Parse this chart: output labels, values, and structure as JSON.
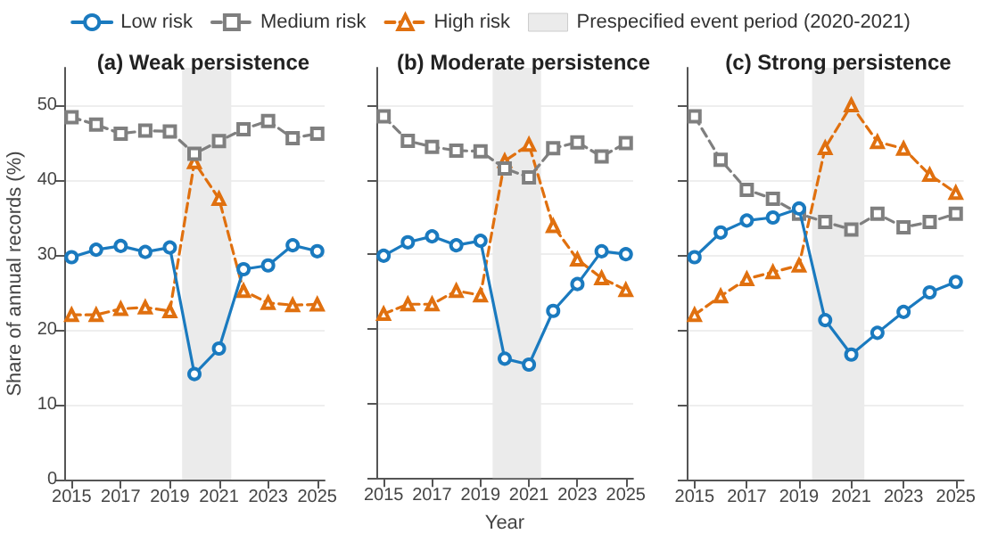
{
  "chart_data": [
    {
      "type": "line",
      "title": "(a) Weak persistence",
      "ylabel": "Share of annual records (%)",
      "x": [
        2015,
        2016,
        2017,
        2018,
        2019,
        2020,
        2021,
        2022,
        2023,
        2024,
        2025
      ],
      "xlim": [
        2014.7,
        2025.3
      ],
      "xticks": [
        2015,
        2017,
        2019,
        2021,
        2023,
        2025
      ],
      "ylim": [
        0,
        55
      ],
      "yticks": [
        0,
        10,
        20,
        30,
        40,
        50
      ],
      "grid": "y",
      "legend": "top",
      "bands": [
        {
          "axis": "x",
          "from": 2019.5,
          "to": 2021.5,
          "label": "Prespecified event period (2020-2021)",
          "color": "#ebebeb"
        }
      ],
      "series": [
        {
          "name": "Low risk",
          "color": "#1a7abf",
          "marker": "circle",
          "line_style": "solid",
          "values": [
            29.7,
            30.7,
            31.2,
            30.4,
            31.0,
            14.1,
            17.5,
            28.1,
            28.6,
            31.3,
            30.5
          ]
        },
        {
          "name": "Medium risk",
          "color": "#7f7f7f",
          "marker": "square",
          "line_style": "dashed",
          "values": [
            48.4,
            47.4,
            46.2,
            46.6,
            46.5,
            43.5,
            45.2,
            46.8,
            47.9,
            45.6,
            46.2
          ]
        },
        {
          "name": "High risk",
          "color": "#e0700f",
          "marker": "triangle",
          "line_style": "dashed",
          "values": [
            22.0,
            22.0,
            22.8,
            23.0,
            22.5,
            42.4,
            37.5,
            25.2,
            23.6,
            23.3,
            23.4
          ]
        }
      ]
    },
    {
      "type": "line",
      "title": "(b) Moderate persistence",
      "xlabel": "Year",
      "x": [
        2015,
        2016,
        2017,
        2018,
        2019,
        2020,
        2021,
        2022,
        2023,
        2024,
        2025
      ],
      "xlim": [
        2014.7,
        2025.3
      ],
      "xticks": [
        2015,
        2017,
        2019,
        2021,
        2023,
        2025
      ],
      "ylim": [
        0,
        55
      ],
      "yticks": [
        0,
        10,
        20,
        30,
        40,
        50
      ],
      "grid": "y",
      "tick_labels": "x",
      "bands": [
        {
          "axis": "x",
          "from": 2019.5,
          "to": 2021.5,
          "color": "#ebebeb"
        }
      ],
      "series": [
        {
          "color": "#1a7abf",
          "marker": "circle",
          "line_style": "solid",
          "values": [
            29.8,
            31.6,
            32.4,
            31.2,
            31.8,
            16.0,
            15.2,
            22.4,
            26.0,
            30.4,
            30.0
          ]
        },
        {
          "color": "#7f7f7f",
          "marker": "square",
          "line_style": "dashed",
          "values": [
            48.5,
            45.2,
            44.4,
            43.9,
            43.8,
            41.5,
            40.3,
            44.2,
            45.0,
            43.1,
            44.9
          ]
        },
        {
          "color": "#e0700f",
          "marker": "triangle",
          "line_style": "dashed",
          "values": [
            22.0,
            23.3,
            23.3,
            25.1,
            24.5,
            42.5,
            44.7,
            33.8,
            29.3,
            26.8,
            25.2
          ]
        }
      ]
    },
    {
      "type": "line",
      "title": "(c) Strong persistence",
      "x": [
        2015,
        2016,
        2017,
        2018,
        2019,
        2020,
        2021,
        2022,
        2023,
        2024,
        2025
      ],
      "xlim": [
        2014.7,
        2025.3
      ],
      "xticks": [
        2015,
        2017,
        2019,
        2021,
        2023,
        2025
      ],
      "ylim": [
        0,
        55
      ],
      "yticks": [
        0,
        10,
        20,
        30,
        40,
        50
      ],
      "grid": "y",
      "tick_labels": "x",
      "bands": [
        {
          "axis": "x",
          "from": 2019.5,
          "to": 2021.5,
          "color": "#ebebeb"
        }
      ],
      "series": [
        {
          "color": "#1a7abf",
          "marker": "circle",
          "line_style": "solid",
          "values": [
            29.7,
            33.0,
            34.6,
            35.0,
            36.2,
            21.3,
            16.7,
            19.6,
            22.4,
            25.0,
            26.4
          ]
        },
        {
          "color": "#7f7f7f",
          "marker": "square",
          "line_style": "dashed",
          "values": [
            48.5,
            42.7,
            38.7,
            37.5,
            35.5,
            34.4,
            33.4,
            35.5,
            33.7,
            34.4,
            35.5
          ]
        },
        {
          "color": "#e0700f",
          "marker": "triangle",
          "line_style": "dashed",
          "values": [
            22.0,
            24.5,
            26.8,
            27.7,
            28.6,
            44.3,
            50.0,
            45.1,
            44.2,
            40.7,
            38.3
          ]
        }
      ]
    }
  ]
}
